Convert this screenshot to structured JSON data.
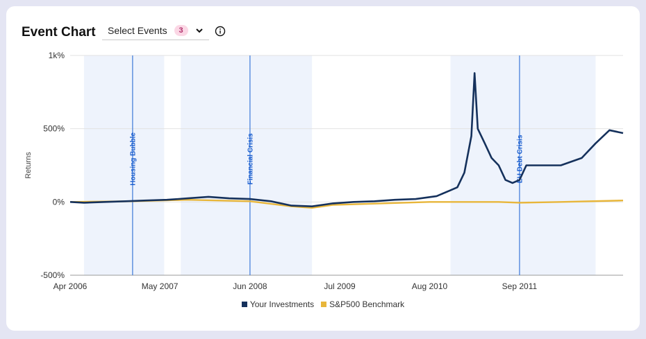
{
  "header": {
    "title": "Event Chart",
    "select_label": "Select Events",
    "select_count": "3"
  },
  "icons": {
    "dropdown": "chevron-down-icon",
    "info": "info-icon"
  },
  "colors": {
    "investments": "#15315c",
    "benchmark": "#e8b63a",
    "event_line": "#3b78d8",
    "event_band": "#eef3fc"
  },
  "chart_data": {
    "type": "line",
    "xlabel": "",
    "ylabel": "Returns",
    "x_range": [
      "2006-04-01",
      "2012-11-30"
    ],
    "xticks": [
      "Apr 2006",
      "May 2007",
      "Jun 2008",
      "Jul 2009",
      "Aug 2010",
      "Sep 2011"
    ],
    "xtick_dates": [
      "2006-04-01",
      "2007-05-01",
      "2008-06-01",
      "2009-07-01",
      "2010-08-01",
      "2011-09-01"
    ],
    "ylim": [
      -500,
      1000
    ],
    "yticks": [
      "-500%",
      "0%",
      "500%",
      "1k%"
    ],
    "ytick_values": [
      -500,
      0,
      500,
      1000
    ],
    "grid": true,
    "legend_position": "bottom",
    "events": [
      {
        "label": "Housing Bubble",
        "date": "2007-01-01",
        "band": [
          "2006-06-01",
          "2007-05-20"
        ]
      },
      {
        "label": "Financial Crisis",
        "date": "2008-06-01",
        "band": [
          "2007-08-01",
          "2009-03-01"
        ]
      },
      {
        "label": "EU Debt Crisis",
        "date": "2011-09-01",
        "band": [
          "2010-11-01",
          "2012-08-01"
        ]
      }
    ],
    "series": [
      {
        "name": "Your Investments",
        "points": [
          [
            "2006-04-01",
            0
          ],
          [
            "2006-06-01",
            -5
          ],
          [
            "2006-09-01",
            0
          ],
          [
            "2006-12-01",
            5
          ],
          [
            "2007-03-01",
            10
          ],
          [
            "2007-06-01",
            15
          ],
          [
            "2007-09-01",
            25
          ],
          [
            "2007-12-01",
            35
          ],
          [
            "2008-03-01",
            25
          ],
          [
            "2008-06-01",
            20
          ],
          [
            "2008-09-01",
            5
          ],
          [
            "2008-12-01",
            -25
          ],
          [
            "2009-03-01",
            -30
          ],
          [
            "2009-06-01",
            -10
          ],
          [
            "2009-09-01",
            0
          ],
          [
            "2009-12-01",
            5
          ],
          [
            "2010-03-01",
            15
          ],
          [
            "2010-06-01",
            20
          ],
          [
            "2010-09-01",
            40
          ],
          [
            "2010-11-01",
            80
          ],
          [
            "2010-12-01",
            100
          ],
          [
            "2011-01-01",
            200
          ],
          [
            "2011-02-01",
            450
          ],
          [
            "2011-02-15",
            880
          ],
          [
            "2011-03-01",
            500
          ],
          [
            "2011-04-01",
            400
          ],
          [
            "2011-05-01",
            300
          ],
          [
            "2011-06-01",
            250
          ],
          [
            "2011-07-01",
            150
          ],
          [
            "2011-08-01",
            130
          ],
          [
            "2011-09-01",
            150
          ],
          [
            "2011-10-01",
            250
          ],
          [
            "2011-12-01",
            250
          ],
          [
            "2012-03-01",
            250
          ],
          [
            "2012-06-01",
            300
          ],
          [
            "2012-08-01",
            400
          ],
          [
            "2012-10-01",
            490
          ],
          [
            "2012-11-30",
            470
          ]
        ]
      },
      {
        "name": "S&P500 Benchmark",
        "points": [
          [
            "2006-04-01",
            0
          ],
          [
            "2007-01-01",
            5
          ],
          [
            "2007-09-01",
            15
          ],
          [
            "2008-06-01",
            5
          ],
          [
            "2008-12-01",
            -30
          ],
          [
            "2009-03-01",
            -40
          ],
          [
            "2009-06-01",
            -20
          ],
          [
            "2010-01-01",
            -10
          ],
          [
            "2010-08-01",
            0
          ],
          [
            "2011-06-01",
            0
          ],
          [
            "2011-09-01",
            -5
          ],
          [
            "2012-03-01",
            0
          ],
          [
            "2012-11-30",
            10
          ]
        ]
      }
    ]
  }
}
